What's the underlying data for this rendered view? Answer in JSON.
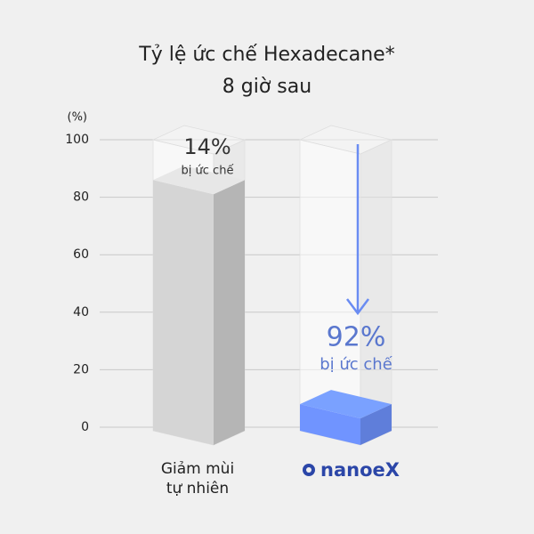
{
  "chart_data": {
    "type": "bar",
    "title": "Tỷ lệ ức chế Hexadecane*",
    "subtitle": "8 giờ sau",
    "y_label": "(%)",
    "categories": [
      "Giảm mùi\ntự nhiên",
      "nanoeX"
    ],
    "values": [
      86,
      8
    ],
    "colors": [
      "#c9c9c9",
      "#6a8cf2"
    ],
    "annotations": [
      {
        "text": "14%",
        "subtext": "bị ức chế"
      },
      {
        "text": "92%",
        "subtext": "bị ức chế"
      }
    ],
    "ylim": [
      0,
      100
    ],
    "yticks": [
      0,
      20,
      40,
      60,
      80,
      100
    ],
    "grid": true
  }
}
